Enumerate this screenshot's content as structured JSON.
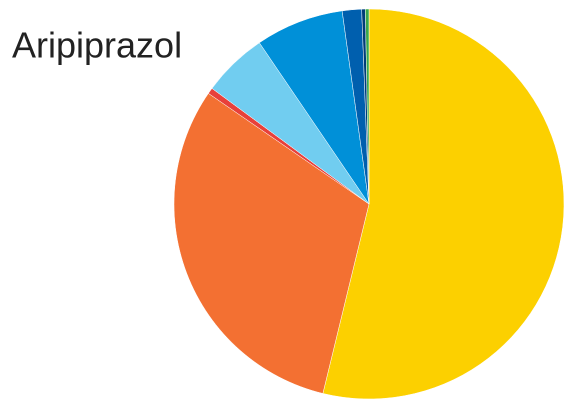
{
  "chart_data": {
    "type": "pie",
    "title": "Aripiprazol",
    "categories": [
      null,
      null,
      null,
      null,
      null,
      null,
      null,
      null
    ],
    "values": [
      53.8,
      30.8,
      0.5,
      5.4,
      7.3,
      1.6,
      0.3,
      0.3
    ],
    "colors": [
      "#fcd000",
      "#f37032",
      "#e8403a",
      "#71cdf0",
      "#0090d8",
      "#005fae",
      "#003c78",
      "#3aa849"
    ]
  }
}
